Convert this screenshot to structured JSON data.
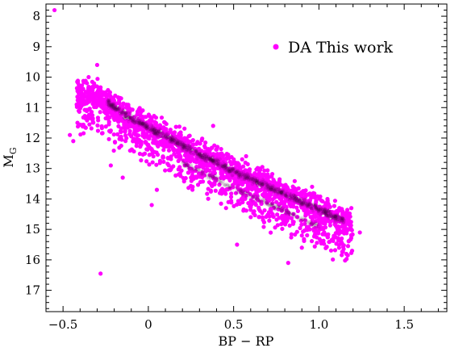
{
  "chart_data": {
    "type": "scatter",
    "xlabel": "BP − RP",
    "ylabel": "M",
    "ylabel_subscript": "G",
    "xlim": [
      -0.6,
      1.75
    ],
    "ylim": [
      17.7,
      7.6
    ],
    "y_inverted": true,
    "x_ticks": [
      -0.5,
      0,
      0.5,
      1.0,
      1.5
    ],
    "x_tick_labels": [
      "−0.5",
      "0",
      "0.5",
      "1.0",
      "1.5"
    ],
    "y_ticks": [
      8,
      9,
      10,
      11,
      12,
      13,
      14,
      15,
      16,
      17
    ],
    "y_tick_labels": [
      "8",
      "9",
      "10",
      "11",
      "12",
      "13",
      "14",
      "15",
      "16",
      "17"
    ],
    "grid": false,
    "legend_position": "top-right",
    "marker_color": "#ff00ff",
    "density_color": "#3a0a3a",
    "series": [
      {
        "name": "DA This work",
        "color": "#ff00ff",
        "main_sequence": {
          "x": [
            -0.3,
            -0.2,
            -0.1,
            0.0,
            0.1,
            0.2,
            0.3,
            0.4,
            0.5,
            0.6,
            0.7,
            0.8,
            0.9,
            1.0,
            1.1,
            1.2
          ],
          "y": [
            10.6,
            11.0,
            11.35,
            11.65,
            11.95,
            12.25,
            12.55,
            12.8,
            13.1,
            13.35,
            13.6,
            13.85,
            14.1,
            14.35,
            14.6,
            14.85
          ]
        },
        "x": [
          -0.55,
          -0.3,
          -0.28,
          -0.35,
          -0.36,
          -0.46,
          -0.44,
          -0.4,
          -0.42,
          -0.22,
          -0.15,
          0.05,
          0.2,
          0.38,
          0.55,
          0.65,
          0.7,
          0.75,
          0.85,
          0.9,
          0.96,
          1.05,
          1.12,
          1.19,
          1.24,
          0.52,
          0.82,
          0.9,
          0.02,
          -0.25
        ],
        "y": [
          7.8,
          9.6,
          16.45,
          10.0,
          10.2,
          11.9,
          12.1,
          11.0,
          10.9,
          12.9,
          13.3,
          13.7,
          12.4,
          11.6,
          12.7,
          13.0,
          13.2,
          13.5,
          13.7,
          15.2,
          13.6,
          14.0,
          14.3,
          14.3,
          15.1,
          15.5,
          16.1,
          15.6,
          14.2,
          10.5
        ]
      }
    ]
  }
}
